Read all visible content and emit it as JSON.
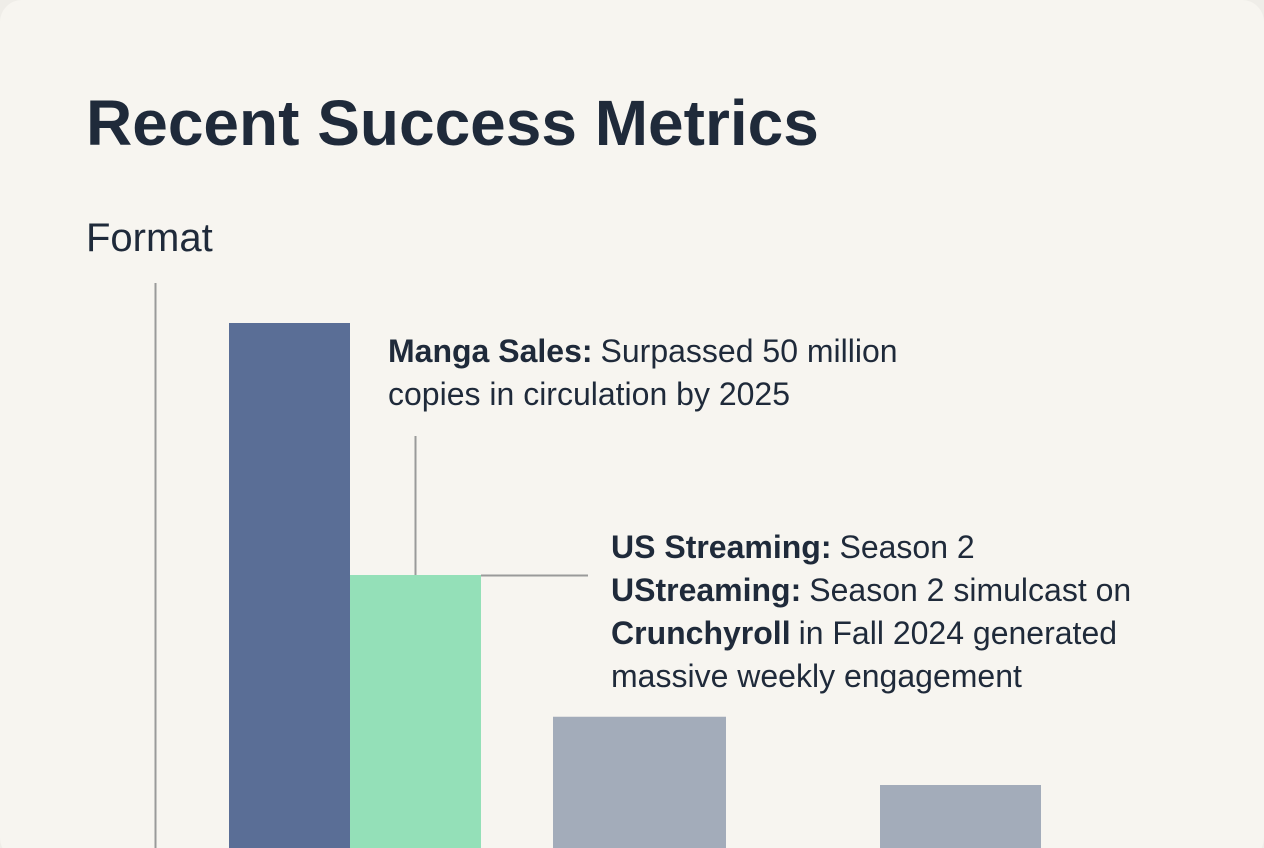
{
  "chart_data": {
    "type": "bar",
    "title": "Recent Success Metrics",
    "subtitle": "Format",
    "categories": [
      null,
      null,
      null,
      null
    ],
    "values": [
      100,
      52,
      25,
      12
    ],
    "colors": [
      "#5a6e96",
      "#94e0b8",
      "#a3acba",
      "#a3acba"
    ],
    "ylim": [
      0,
      100
    ],
    "annotations": [
      {
        "lines": [
          {
            "bold": "Manga Sales:",
            "text": "Surpassed 50 million"
          },
          {
            "text": "copies in circulation by 2025"
          }
        ]
      },
      {
        "lines": [
          {
            "bold": "US Streaming:",
            "text": "Season 2"
          },
          {
            "bold": "UStreaming:",
            "text": "Season 2 simulcast on"
          },
          {
            "bold": "Crunchyroll",
            "text": "in Fall 2024 generated"
          },
          {
            "text": "massive weekly engagement"
          }
        ]
      }
    ]
  }
}
